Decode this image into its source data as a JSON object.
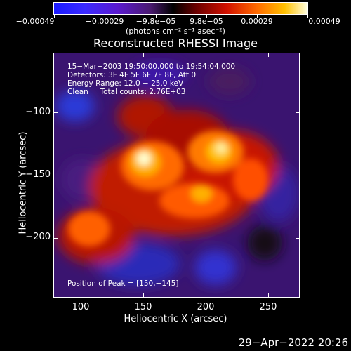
{
  "colorbar": {
    "labels": [
      "−0.00049",
      "−0.00029",
      "−9.8e−05",
      "9.8e−05",
      "0.00029",
      "0.00049"
    ],
    "units": "(photons cm⁻² s⁻¹ asec⁻²)"
  },
  "title": "Reconstructed RHESSI Image",
  "info": {
    "line1": "15−Mar−2003 19:50:00.000 to 19:54:04.000",
    "line2": "Detectors: 3F 4F 5F 6F 7F 8F, Att 0",
    "line3": "Energy Range: 12.0 − 25.0 keV",
    "line4": "Clean     Total counts: 2.76E+03",
    "peak": "Position of Peak = [150,−145]"
  },
  "axes": {
    "xlabel": "Heliocentric X (arcsec)",
    "ylabel": "Heliocentric Y (arcsec)",
    "xticks": [
      "100",
      "150",
      "200",
      "250"
    ],
    "yticks": [
      "−100",
      "−150",
      "−200"
    ]
  },
  "footer": {
    "date": "29−Apr−2022 20:26"
  }
}
